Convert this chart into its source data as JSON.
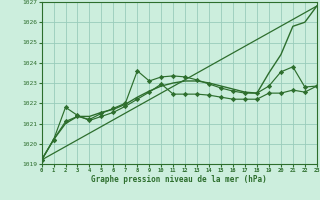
{
  "bg_color": "#cceedd",
  "grid_color": "#99ccbb",
  "line_color": "#2d6e2d",
  "xlabel": "Graphe pression niveau de la mer (hPa)",
  "ylim": [
    1019,
    1027
  ],
  "xlim": [
    0,
    23
  ],
  "yticks": [
    1019,
    1020,
    1021,
    1022,
    1023,
    1024,
    1025,
    1026,
    1027
  ],
  "xticks": [
    0,
    1,
    2,
    3,
    4,
    5,
    6,
    7,
    8,
    9,
    10,
    11,
    12,
    13,
    14,
    15,
    16,
    17,
    18,
    19,
    20,
    21,
    22,
    23
  ],
  "series": [
    {
      "name": "line_steep_top",
      "x": [
        0,
        1,
        2,
        3,
        4,
        5,
        6,
        7,
        8,
        9,
        10,
        11,
        12,
        13,
        14,
        15,
        16,
        17,
        18,
        19,
        20,
        21,
        22,
        23
      ],
      "y": [
        1019.2,
        1020.2,
        1021.0,
        1021.35,
        1021.35,
        1021.55,
        1021.7,
        1021.95,
        1022.3,
        1022.6,
        1022.85,
        1023.0,
        1023.1,
        1023.1,
        1023.0,
        1022.85,
        1022.7,
        1022.55,
        1022.5,
        1023.5,
        1024.4,
        1025.8,
        1026.0,
        1026.8
      ],
      "marker": null,
      "lw": 1.0
    },
    {
      "name": "line_diagonal",
      "x": [
        0,
        23
      ],
      "y": [
        1019.2,
        1026.8
      ],
      "marker": null,
      "lw": 0.9
    },
    {
      "name": "markers_upper",
      "x": [
        0,
        1,
        2,
        3,
        4,
        5,
        6,
        7,
        8,
        9,
        10,
        11,
        12,
        13,
        14,
        15,
        16,
        17,
        18,
        19,
        20,
        21,
        22,
        23
      ],
      "y": [
        1019.2,
        1020.2,
        1021.1,
        1021.35,
        1021.2,
        1021.5,
        1021.75,
        1022.0,
        1023.6,
        1023.1,
        1023.3,
        1023.35,
        1023.3,
        1023.15,
        1022.95,
        1022.75,
        1022.6,
        1022.5,
        1022.5,
        1022.85,
        1023.55,
        1023.8,
        1022.8,
        1022.85
      ],
      "marker": "D",
      "markersize": 2.2,
      "lw": 0.85
    },
    {
      "name": "markers_lower",
      "x": [
        0,
        1,
        2,
        3,
        4,
        5,
        6,
        7,
        8,
        9,
        10,
        11,
        12,
        13,
        14,
        15,
        16,
        17,
        18,
        19,
        20,
        21,
        22,
        23
      ],
      "y": [
        1019.2,
        1020.2,
        1021.8,
        1021.4,
        1021.15,
        1021.35,
        1021.55,
        1021.85,
        1022.2,
        1022.55,
        1022.95,
        1022.45,
        1022.45,
        1022.45,
        1022.4,
        1022.3,
        1022.2,
        1022.2,
        1022.2,
        1022.5,
        1022.5,
        1022.65,
        1022.55,
        1022.85
      ],
      "marker": "D",
      "markersize": 2.2,
      "lw": 0.85
    }
  ]
}
